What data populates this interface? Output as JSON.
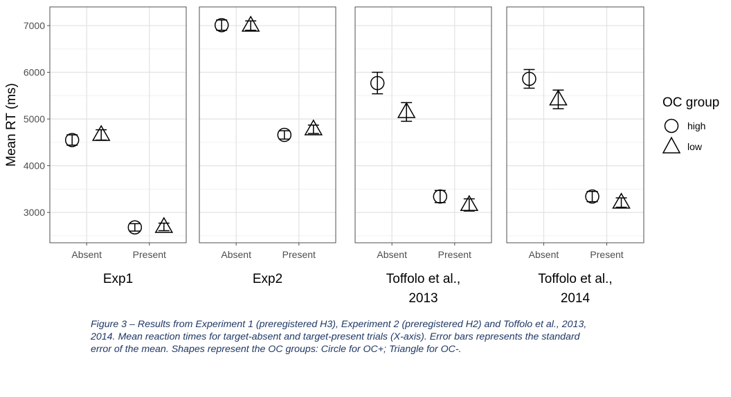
{
  "chart_data": {
    "type": "scatter",
    "ylabel": "Mean RT (ms)",
    "ylim": [
      2350,
      7400
    ],
    "yticks": [
      3000,
      4000,
      5000,
      6000,
      7000
    ],
    "categories": [
      "Absent",
      "Present"
    ],
    "grid": true,
    "legend": {
      "title": "OC group",
      "placement": "right",
      "entries": [
        {
          "name": "high",
          "shape": "circle"
        },
        {
          "name": "low",
          "shape": "triangle"
        }
      ]
    },
    "panels": [
      {
        "label_lines": [
          "Exp1"
        ],
        "series": [
          {
            "name": "high",
            "points": [
              {
                "x": "Absent",
                "y": 4550,
                "err": 110
              },
              {
                "x": "Present",
                "y": 2680,
                "err": 80
              }
            ]
          },
          {
            "name": "low",
            "points": [
              {
                "x": "Absent",
                "y": 4660,
                "err": 110
              },
              {
                "x": "Present",
                "y": 2690,
                "err": 80
              }
            ]
          }
        ]
      },
      {
        "label_lines": [
          "Exp2"
        ],
        "series": [
          {
            "name": "high",
            "points": [
              {
                "x": "Absent",
                "y": 7010,
                "err": 110
              },
              {
                "x": "Present",
                "y": 4660,
                "err": 90
              }
            ]
          },
          {
            "name": "low",
            "points": [
              {
                "x": "Absent",
                "y": 7000,
                "err": 100
              },
              {
                "x": "Present",
                "y": 4780,
                "err": 90
              }
            ]
          }
        ]
      },
      {
        "label_lines": [
          "Toffolo et al.,",
          "2013"
        ],
        "series": [
          {
            "name": "high",
            "points": [
              {
                "x": "Absent",
                "y": 5770,
                "err": 230
              },
              {
                "x": "Present",
                "y": 3340,
                "err": 130
              }
            ]
          },
          {
            "name": "low",
            "points": [
              {
                "x": "Absent",
                "y": 5150,
                "err": 200
              },
              {
                "x": "Present",
                "y": 3160,
                "err": 130
              }
            ]
          }
        ]
      },
      {
        "label_lines": [
          "Toffolo et al.,",
          "2014"
        ],
        "series": [
          {
            "name": "high",
            "points": [
              {
                "x": "Absent",
                "y": 5860,
                "err": 200
              },
              {
                "x": "Present",
                "y": 3340,
                "err": 110
              }
            ]
          },
          {
            "name": "low",
            "points": [
              {
                "x": "Absent",
                "y": 5420,
                "err": 200
              },
              {
                "x": "Present",
                "y": 3210,
                "err": 100
              }
            ]
          }
        ]
      }
    ]
  },
  "caption": "Figure 3 – Results from Experiment 1 (preregistered H3), Experiment 2 (preregistered H2) and Toffolo et al., 2013, 2014. Mean reaction times for target-absent and target-present trials (X-axis). Error bars represents the standard error of the mean. Shapes represent the OC groups: Circle for OC+; Triangle for OC-."
}
